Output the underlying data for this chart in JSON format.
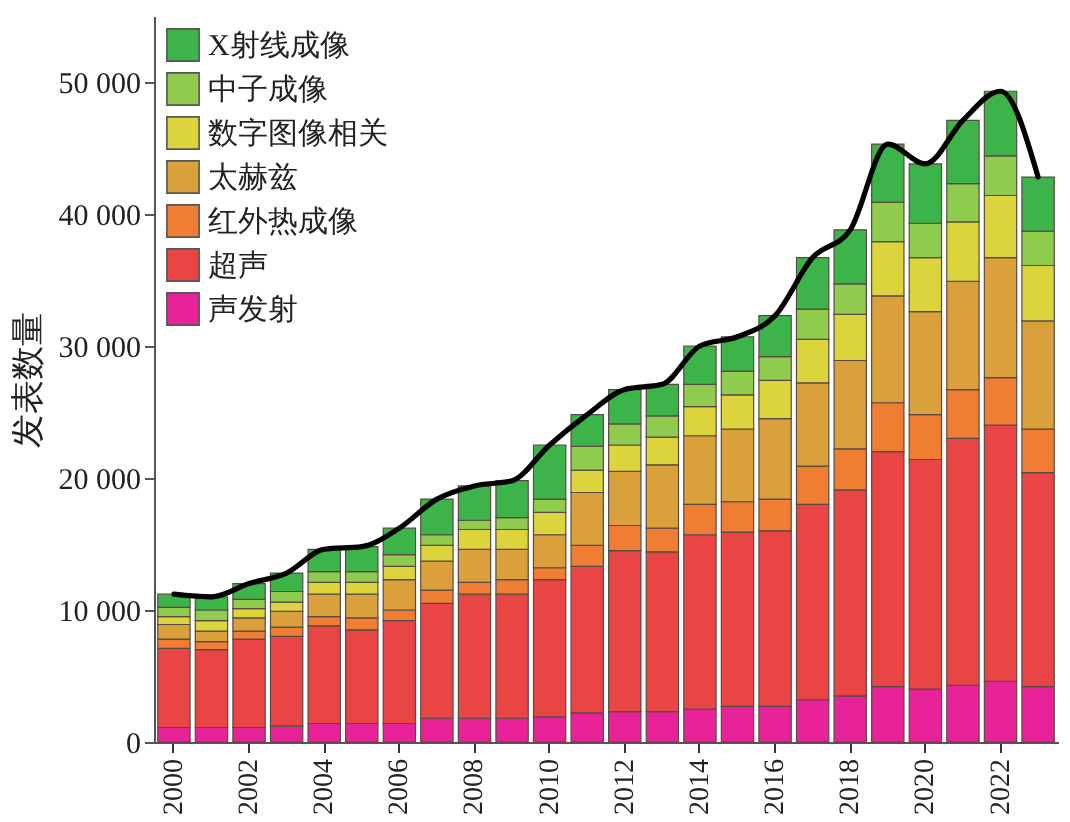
{
  "chart_data": {
    "type": "bar",
    "stacked": true,
    "ylabel": "发表数量",
    "legend": "top left",
    "grid": false,
    "categories": [
      "2000",
      null,
      "2002",
      null,
      "2004",
      null,
      "2006",
      null,
      "2008",
      null,
      "2010",
      null,
      "2012",
      null,
      "2014",
      null,
      "2016",
      null,
      "2018",
      null,
      "2020",
      null,
      "2022",
      null
    ],
    "ylim": [
      0,
      55000
    ],
    "yticks": [
      0,
      {
        "value": 10000,
        "label": "10 000"
      },
      {
        "value": 20000,
        "label": "20 000"
      },
      {
        "value": 30000,
        "label": "30 000"
      },
      {
        "value": 40000,
        "label": "40 000"
      },
      {
        "value": 50000,
        "label": "50 000"
      }
    ],
    "series": [
      {
        "name": "声发射",
        "color": "#e8239a",
        "values": [
          1100,
          1100,
          1100,
          1200,
          1400,
          1400,
          1400,
          1800,
          1800,
          1800,
          1900,
          2200,
          2300,
          2300,
          2500,
          2700,
          2700,
          3200,
          3500,
          4200,
          4000,
          4300,
          4600,
          4200
        ]
      },
      {
        "name": "超声",
        "color": "#e94545",
        "values": [
          6000,
          5900,
          6700,
          6800,
          7400,
          7100,
          7800,
          8700,
          9400,
          9400,
          10400,
          11100,
          12200,
          12100,
          13200,
          13200,
          13300,
          14800,
          15600,
          17800,
          17400,
          18700,
          19400,
          16200
        ]
      },
      {
        "name": "红外热成像",
        "color": "#ef7d32",
        "values": [
          700,
          600,
          600,
          700,
          700,
          900,
          800,
          1000,
          900,
          1100,
          900,
          1600,
          1900,
          1800,
          2300,
          2300,
          2400,
          2900,
          3100,
          3700,
          3400,
          3700,
          3600,
          3300
        ]
      },
      {
        "name": "太赫兹",
        "color": "#d9a03c",
        "values": [
          1100,
          800,
          1000,
          1200,
          1700,
          1800,
          2300,
          2200,
          2500,
          2300,
          2500,
          4000,
          4100,
          4800,
          5200,
          5500,
          6100,
          6300,
          6700,
          8100,
          7800,
          8200,
          9100,
          8200
        ]
      },
      {
        "name": "数字图像相关",
        "color": "#dcd43c",
        "values": [
          600,
          800,
          700,
          700,
          900,
          900,
          1000,
          1200,
          1500,
          1500,
          1700,
          1700,
          2000,
          2100,
          2200,
          2600,
          2900,
          3300,
          3500,
          4100,
          4100,
          4500,
          4700,
          4200
        ]
      },
      {
        "name": "中子成像",
        "color": "#8fcc4e",
        "values": [
          700,
          800,
          700,
          800,
          800,
          800,
          900,
          800,
          700,
          900,
          1000,
          1800,
          1600,
          1600,
          1700,
          1800,
          1800,
          2300,
          2300,
          3000,
          2600,
          2900,
          3000,
          2600
        ]
      },
      {
        "name": "X射线成像",
        "color": "#3cb44a",
        "values": [
          1000,
          1000,
          1200,
          1400,
          1700,
          1900,
          2000,
          2700,
          2600,
          2800,
          4100,
          2400,
          2600,
          2400,
          2900,
          2600,
          3100,
          3900,
          4100,
          4400,
          4500,
          4800,
          4900,
          4100
        ]
      },
      {
        "type": "line",
        "color": "#000000",
        "values": [
          11200,
          11000,
          12000,
          12800,
          14600,
          14800,
          16200,
          18400,
          19400,
          19800,
          22500,
          24800,
          26700,
          27100,
          30000,
          30700,
          32300,
          36700,
          38800,
          45300,
          43800,
          47100,
          49300,
          42800
        ]
      }
    ]
  }
}
